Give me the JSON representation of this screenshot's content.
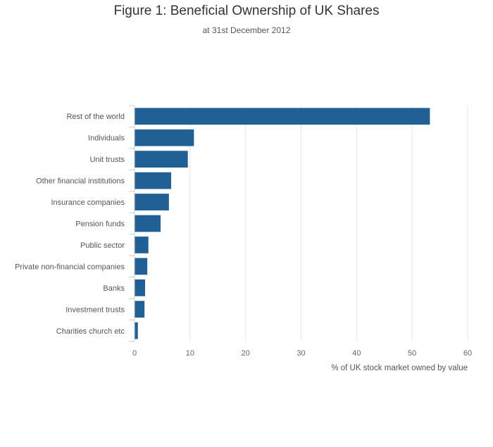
{
  "chart_data": {
    "type": "bar",
    "orientation": "horizontal",
    "title": "Figure 1: Beneficial Ownership of UK Shares",
    "subtitle": "at 31st December 2012",
    "xlabel": "% of UK stock market owned by value",
    "ylabel": "",
    "xlim": [
      0,
      60
    ],
    "xticks": [
      0,
      10,
      20,
      30,
      40,
      50,
      60
    ],
    "grid": true,
    "color": "#206095",
    "categories": [
      "Rest of the world",
      "Individuals",
      "Unit trusts",
      "Other financial institutions",
      "Insurance companies",
      "Pension funds",
      "Public sector",
      "Private non-financial companies",
      "Banks",
      "Investment trusts",
      "Charities church etc"
    ],
    "values": [
      53.2,
      10.7,
      9.6,
      6.6,
      6.2,
      4.7,
      2.5,
      2.3,
      1.9,
      1.8,
      0.6
    ]
  }
}
